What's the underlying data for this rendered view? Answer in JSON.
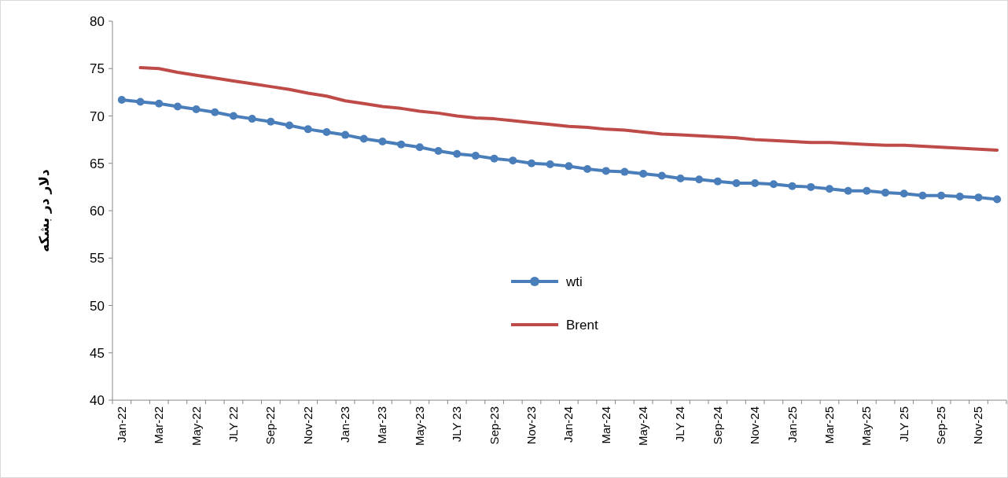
{
  "chart_data": {
    "type": "line",
    "ylabel": "دلار در بشکه",
    "categories": [
      "Jan-22",
      null,
      "Mar-22",
      null,
      "May-22",
      null,
      "JLY 22",
      null,
      "Sep-22",
      null,
      "Nov-22",
      null,
      "Jan-23",
      null,
      "Mar-23",
      null,
      "May-23",
      null,
      "JLY 23",
      null,
      "Sep-23",
      null,
      "Nov-23",
      null,
      "Jan-24",
      null,
      "Mar-24",
      null,
      "May-24",
      null,
      "JLY 24",
      null,
      "Sep-24",
      null,
      "Nov-24",
      null,
      "Jan-25",
      null,
      "Mar-25",
      null,
      "May-25",
      null,
      "JLY 25",
      null,
      "Sep-25",
      null,
      "Nov-25",
      null
    ],
    "series": [
      {
        "name": "wti",
        "color": "#4a7ebb",
        "marker": "circle",
        "values": [
          71.7,
          71.5,
          71.3,
          71.0,
          70.7,
          70.4,
          70.0,
          69.7,
          69.4,
          69.0,
          68.6,
          68.3,
          68.0,
          67.6,
          67.3,
          67.0,
          66.7,
          66.3,
          66.0,
          65.8,
          65.5,
          65.3,
          65.0,
          64.9,
          64.7,
          64.4,
          64.2,
          64.1,
          63.9,
          63.7,
          63.4,
          63.3,
          63.1,
          62.9,
          62.9,
          62.8,
          62.6,
          62.5,
          62.3,
          62.1,
          62.1,
          61.9,
          61.8,
          61.6,
          61.6,
          61.5,
          61.4,
          61.2
        ]
      },
      {
        "name": "Brent",
        "color": "#be4b48",
        "marker": "none",
        "values": [
          null,
          75.1,
          75.0,
          74.6,
          74.3,
          74.0,
          73.7,
          73.4,
          73.1,
          72.8,
          72.4,
          72.1,
          71.6,
          71.3,
          71.0,
          70.8,
          70.5,
          70.3,
          70.0,
          69.8,
          69.7,
          69.5,
          69.3,
          69.1,
          68.9,
          68.8,
          68.6,
          68.5,
          68.3,
          68.1,
          68.0,
          67.9,
          67.8,
          67.7,
          67.5,
          67.4,
          67.3,
          67.2,
          67.2,
          67.1,
          67.0,
          66.9,
          66.9,
          66.8,
          66.7,
          66.6,
          66.5,
          66.4
        ]
      }
    ],
    "ylim": [
      40,
      80
    ],
    "yticks": [
      40,
      45,
      50,
      55,
      60,
      65,
      70,
      75,
      80
    ],
    "legend": "center",
    "line_style": "solid"
  }
}
